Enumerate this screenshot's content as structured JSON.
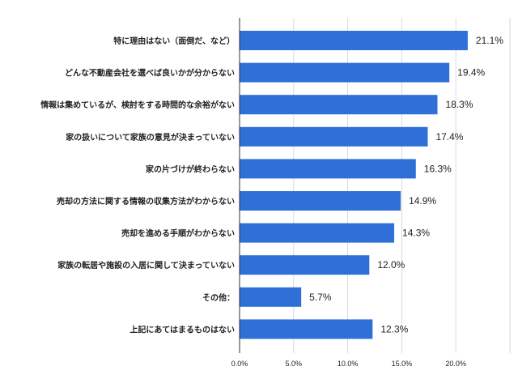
{
  "chart_data": {
    "type": "bar",
    "orientation": "horizontal",
    "categories": [
      "特に理由はない（面倒だ、など）",
      "どんな不動産会社を選べば良いかが分からない",
      "情報は集めているが、検討をする時間的な余裕がない",
      "家の扱いについて家族の意見が決まっていない",
      "家の片づけが終わらない",
      "売却の方法に関する情報の収集方法がわからない",
      "売却を進める手順がわからない",
      "家族の転居や施設の入居に関して決まっていない",
      "その他：",
      "上記にあてはまるものはない"
    ],
    "values": [
      21.1,
      19.4,
      18.3,
      17.4,
      16.3,
      14.9,
      14.3,
      12.0,
      5.7,
      12.3
    ],
    "value_labels": [
      "21.1%",
      "19.4%",
      "18.3%",
      "17.4%",
      "16.3%",
      "14.9%",
      "14.3%",
      "12.0%",
      "5.7%",
      "12.3%"
    ],
    "xlim": [
      0,
      25
    ],
    "x_ticks": [
      0,
      5,
      10,
      15,
      20,
      25
    ],
    "x_tick_labels": [
      "0.0%",
      "5.0%",
      "10.0%",
      "15.0%",
      "20.0%",
      ""
    ],
    "title": "",
    "xlabel": "",
    "ylabel": "",
    "grid": true,
    "legend": "none",
    "bar_color": "#2e6fd8"
  }
}
